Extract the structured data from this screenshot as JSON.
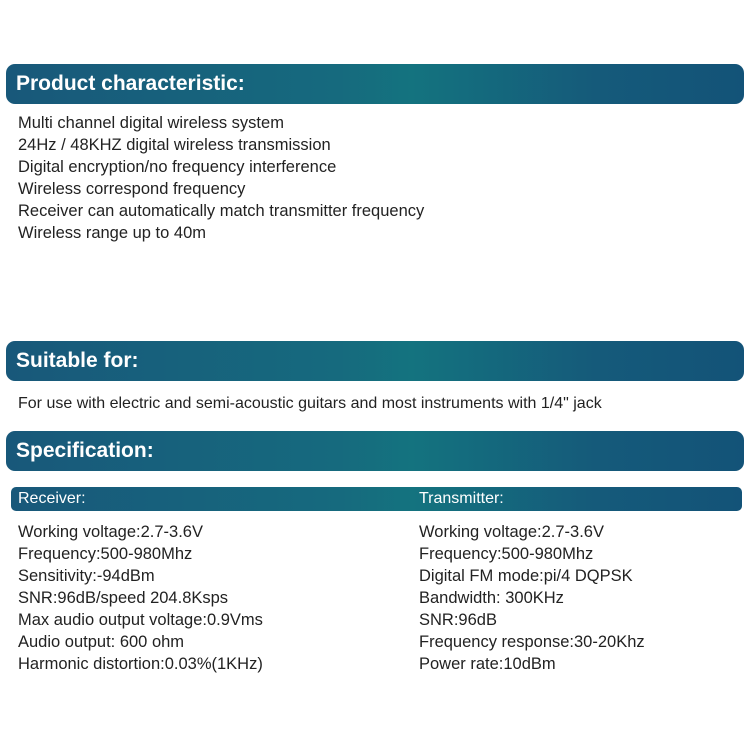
{
  "characteristic": {
    "title": "Product characteristic:",
    "items": [
      "Multi channel digital wireless system",
      "24Hz / 48KHZ digital wireless transmission",
      "Digital encryption/no frequency interference",
      "Wireless correspond frequency",
      "Receiver can automatically match transmitter frequency",
      "Wireless range up to 40m"
    ]
  },
  "suitable": {
    "title": "Suitable for:",
    "text": "For use with electric and semi-acoustic guitars and most instruments with 1/4\" jack"
  },
  "specification": {
    "title": "Specification:",
    "receiver": {
      "label": "Receiver:",
      "items": [
        "Working voltage:2.7-3.6V",
        "Frequency:500-980Mhz",
        "Sensitivity:-94dBm",
        "SNR:96dB/speed 204.8Ksps",
        "Max audio output voltage:0.9Vms",
        "Audio output: 600 ohm",
        "Harmonic distortion:0.03%(1KHz)"
      ]
    },
    "transmitter": {
      "label": "Transmitter:",
      "items": [
        "Working voltage:2.7-3.6V",
        "Frequency:500-980Mhz",
        "Digital FM mode:pi/4 DQPSK",
        "Bandwidth: 300KHz",
        "SNR:96dB",
        "Frequency response:30-20Khz",
        "Power rate:10dBm"
      ]
    }
  },
  "colors": {
    "header_gradient": [
      "#18587a",
      "#14737f",
      "#135378"
    ]
  }
}
